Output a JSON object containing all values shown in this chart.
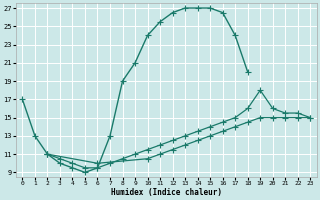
{
  "xlabel": "Humidex (Indice chaleur)",
  "bg_color": "#cce8e8",
  "grid_color": "#ffffff",
  "line_color": "#1a7a6a",
  "xlim": [
    -0.5,
    23.5
  ],
  "ylim": [
    8.5,
    27.5
  ],
  "xticks": [
    0,
    1,
    2,
    3,
    4,
    5,
    6,
    7,
    8,
    9,
    10,
    11,
    12,
    13,
    14,
    15,
    16,
    17,
    18,
    19,
    20,
    21,
    22,
    23
  ],
  "yticks": [
    9,
    11,
    13,
    15,
    17,
    19,
    21,
    23,
    25,
    27
  ],
  "line1_x": [
    0,
    1,
    2,
    3,
    4,
    5,
    6,
    7,
    8,
    9,
    10,
    11,
    12,
    13,
    14,
    15,
    16,
    17,
    18
  ],
  "line1_y": [
    17,
    13,
    11,
    10,
    9.5,
    9,
    9.5,
    13,
    19,
    21,
    24,
    25.5,
    26.5,
    27,
    27,
    27,
    26.5,
    24,
    20
  ],
  "line2_x": [
    2,
    3,
    4,
    5,
    6,
    7,
    8,
    9,
    10,
    11,
    12,
    13,
    14,
    15,
    16,
    17,
    18,
    19,
    20,
    21,
    22,
    23
  ],
  "line2_y": [
    11,
    10.5,
    10,
    9.5,
    9.5,
    10,
    10.5,
    11,
    11.5,
    12,
    12.5,
    13,
    13.5,
    14,
    14.5,
    15,
    16,
    18,
    16,
    15.5,
    15.5,
    15
  ],
  "line3_x": [
    2,
    6,
    10,
    11,
    12,
    13,
    14,
    15,
    16,
    17,
    18,
    19,
    20,
    21,
    22,
    23
  ],
  "line3_y": [
    11,
    10,
    10.5,
    11,
    11.5,
    12,
    12.5,
    13,
    13.5,
    14,
    14.5,
    15,
    15,
    15,
    15,
    15
  ],
  "marker_size": 3
}
